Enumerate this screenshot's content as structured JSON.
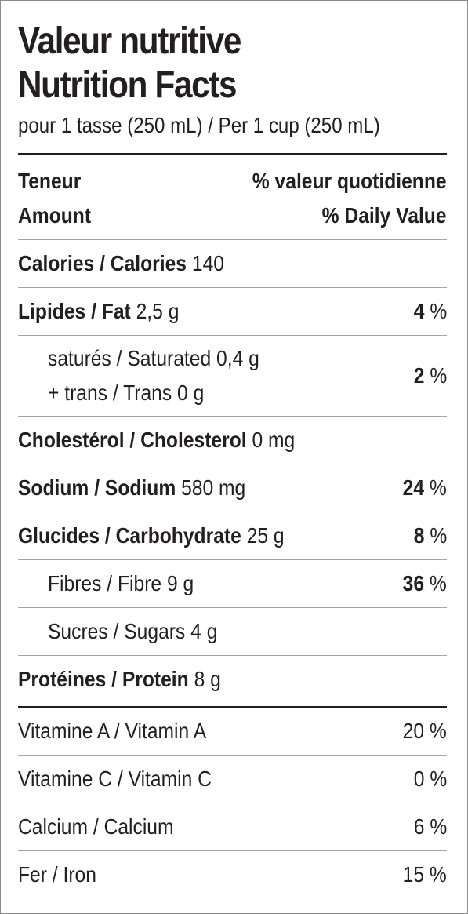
{
  "title_fr": "Valeur nutritive",
  "title_en": "Nutrition Facts",
  "serving": "pour 1 tasse (250 mL) / Per 1 cup (250 mL)",
  "header": {
    "amount_fr": "Teneur",
    "amount_en": "Amount",
    "dv_fr": "% valeur quotidienne",
    "dv_en": "% Daily Value"
  },
  "calories": {
    "label": "Calories / Calories",
    "value": "140"
  },
  "fat": {
    "label": "Lipides / Fat",
    "amount": "2,5 g",
    "dv_num": "4",
    "dv_unit": " %"
  },
  "saturated": {
    "label": "saturés / Saturated",
    "amount": "0,4 g"
  },
  "trans": {
    "label": "+ trans / Trans",
    "amount": "0 g"
  },
  "sat_trans_dv": {
    "dv_num": "2",
    "dv_unit": " %"
  },
  "cholesterol": {
    "label": "Cholestérol / Cholesterol",
    "amount": "0 mg"
  },
  "sodium": {
    "label": "Sodium / Sodium",
    "amount": "580 mg",
    "dv_num": "24",
    "dv_unit": " %"
  },
  "carbohydrate": {
    "label": "Glucides / Carbohydrate",
    "amount": "25 g",
    "dv_num": "8",
    "dv_unit": " %"
  },
  "fibre": {
    "label": "Fibres / Fibre",
    "amount": "9 g",
    "dv_num": "36",
    "dv_unit": " %"
  },
  "sugars": {
    "label": "Sucres / Sugars",
    "amount": "4 g"
  },
  "protein": {
    "label": "Protéines / Protein",
    "amount": "8 g"
  },
  "vitamins": [
    {
      "label": "Vitamine A / Vitamin A",
      "dv": "20 %"
    },
    {
      "label": "Vitamine C / Vitamin C",
      "dv": "0 %"
    },
    {
      "label": "Calcium / Calcium",
      "dv": "6 %"
    },
    {
      "label": "Fer / Iron",
      "dv": "15 %"
    }
  ]
}
